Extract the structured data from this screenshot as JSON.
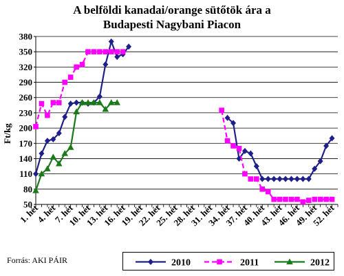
{
  "chart_data": {
    "type": "line",
    "title": [
      "A belföldi kanadai/orange sütőtök ára a",
      "Budapesti Nagybani Piacon"
    ],
    "ylabel": "Ft/kg",
    "ylim": [
      50,
      380
    ],
    "yticks": [
      50,
      80,
      110,
      140,
      170,
      200,
      230,
      260,
      290,
      320,
      350,
      380
    ],
    "xlim": [
      1,
      53
    ],
    "x_tick_labels": [
      "1. hét",
      "4. hét",
      "7. hét",
      "10. hét",
      "13. hét",
      "16. hét",
      "19. hét",
      "22. hét",
      "25. hét",
      "28. hét",
      "31. hét",
      "34. hét",
      "37. hét",
      "40. hét",
      "43. hét",
      "46. hét",
      "49. hét",
      "52. hét"
    ],
    "grid": "horizontal",
    "legend_position": "bottom",
    "series": [
      {
        "name": "2010",
        "color": "#1f1f8a",
        "marker": "diamond",
        "segments": [
          [
            [
              1,
              110
            ],
            [
              2,
              150
            ],
            [
              3,
              175
            ],
            [
              4,
              178
            ],
            [
              5,
              190
            ],
            [
              6,
              222
            ],
            [
              7,
              248
            ],
            [
              8,
              250
            ],
            [
              9,
              250
            ],
            [
              10,
              248
            ],
            [
              11,
              250
            ],
            [
              12,
              262
            ],
            [
              13,
              325
            ],
            [
              14,
              370
            ],
            [
              15,
              340
            ],
            [
              16,
              345
            ],
            [
              17,
              360
            ]
          ],
          [
            [
              34,
              220
            ],
            [
              35,
              210
            ],
            [
              36,
              140
            ],
            [
              37,
              155
            ],
            [
              38,
              150
            ],
            [
              39,
              125
            ],
            [
              40,
              100
            ],
            [
              41,
              100
            ],
            [
              42,
              100
            ],
            [
              43,
              100
            ],
            [
              44,
              100
            ],
            [
              45,
              100
            ],
            [
              46,
              100
            ],
            [
              47,
              100
            ],
            [
              48,
              100
            ],
            [
              49,
              120
            ],
            [
              50,
              135
            ],
            [
              51,
              165
            ],
            [
              52,
              180
            ]
          ]
        ]
      },
      {
        "name": "2011",
        "color": "#ff00ff",
        "marker": "square",
        "segments": [
          [
            [
              1,
              203
            ],
            [
              2,
              248
            ],
            [
              3,
              225
            ],
            [
              4,
              250
            ],
            [
              5,
              250
            ],
            [
              6,
              290
            ],
            [
              7,
              300
            ],
            [
              8,
              320
            ],
            [
              9,
              325
            ],
            [
              10,
              350
            ],
            [
              11,
              350
            ],
            [
              12,
              350
            ],
            [
              13,
              350
            ],
            [
              14,
              350
            ],
            [
              15,
              350
            ],
            [
              16,
              350
            ]
          ],
          [
            [
              33,
              235
            ],
            [
              34,
              175
            ],
            [
              35,
              165
            ],
            [
              36,
              160
            ],
            [
              37,
              110
            ],
            [
              38,
              100
            ],
            [
              39,
              100
            ],
            [
              40,
              80
            ],
            [
              41,
              75
            ],
            [
              42,
              60
            ],
            [
              43,
              60
            ],
            [
              44,
              60
            ],
            [
              45,
              60
            ],
            [
              46,
              60
            ],
            [
              47,
              55
            ],
            [
              48,
              58
            ],
            [
              49,
              60
            ],
            [
              50,
              60
            ],
            [
              51,
              60
            ],
            [
              52,
              60
            ]
          ]
        ]
      },
      {
        "name": "2012",
        "color": "#1a7a1a",
        "marker": "triangle",
        "segments": [
          [
            [
              1,
              77
            ],
            [
              2,
              110
            ],
            [
              3,
              120
            ],
            [
              4,
              143
            ],
            [
              5,
              130
            ],
            [
              6,
              150
            ],
            [
              7,
              162
            ],
            [
              8,
              232
            ],
            [
              9,
              250
            ],
            [
              10,
              250
            ],
            [
              11,
              250
            ],
            [
              12,
              250
            ],
            [
              13,
              237
            ],
            [
              14,
              250
            ],
            [
              15,
              250
            ]
          ]
        ]
      }
    ]
  },
  "source_text": "Forrás: AKI PÁIR"
}
